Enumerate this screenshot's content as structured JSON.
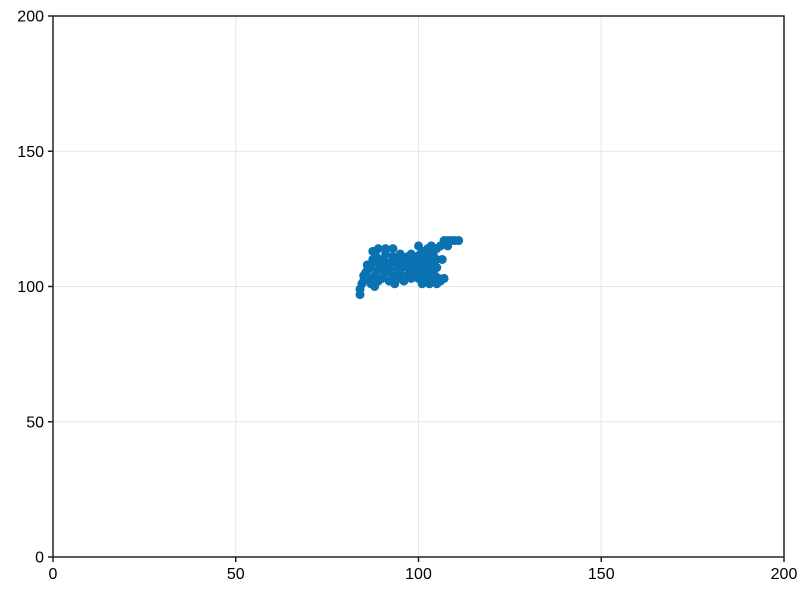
{
  "chart_data": {
    "type": "scatter",
    "title": "",
    "xlabel": "",
    "ylabel": "",
    "xlim": [
      0,
      200
    ],
    "ylim": [
      0,
      200
    ],
    "xticks": [
      0,
      50,
      100,
      150,
      200
    ],
    "yticks": [
      0,
      50,
      100,
      150,
      200
    ],
    "xtick_labels": [
      "0",
      "50",
      "100",
      "150",
      "200"
    ],
    "ytick_labels": [
      "0",
      "50",
      "100",
      "150",
      "200"
    ],
    "grid": true,
    "legend": "none",
    "series": [
      {
        "color": "#0b72b2",
        "points": [
          [
            84,
            97
          ],
          [
            84,
            99
          ],
          [
            84.5,
            101
          ],
          [
            85,
            102
          ],
          [
            85,
            104
          ],
          [
            85.5,
            105
          ],
          [
            86,
            106
          ],
          [
            86,
            108
          ],
          [
            87,
            101
          ],
          [
            87,
            103
          ],
          [
            87,
            107
          ],
          [
            87.5,
            110
          ],
          [
            87.5,
            113
          ],
          [
            88,
            100
          ],
          [
            88,
            104
          ],
          [
            88,
            109
          ],
          [
            88.5,
            111
          ],
          [
            89,
            102
          ],
          [
            89,
            106
          ],
          [
            89,
            114
          ],
          [
            89.5,
            108
          ],
          [
            90,
            103
          ],
          [
            90,
            107
          ],
          [
            90.5,
            110
          ],
          [
            91,
            105
          ],
          [
            91,
            112
          ],
          [
            91,
            114
          ],
          [
            91.5,
            108
          ],
          [
            92,
            102
          ],
          [
            92,
            106
          ],
          [
            92.5,
            109
          ],
          [
            93,
            104
          ],
          [
            93,
            111
          ],
          [
            93,
            114
          ],
          [
            93.5,
            101
          ],
          [
            94,
            107
          ],
          [
            94,
            110
          ],
          [
            94.5,
            103
          ],
          [
            95,
            105
          ],
          [
            95,
            109
          ],
          [
            95,
            112
          ],
          [
            95.5,
            107
          ],
          [
            96,
            102
          ],
          [
            96,
            110
          ],
          [
            97,
            104
          ],
          [
            97,
            108
          ],
          [
            97,
            111
          ],
          [
            97.5,
            106
          ],
          [
            98,
            103
          ],
          [
            98,
            109
          ],
          [
            98,
            112
          ],
          [
            98.5,
            110
          ],
          [
            99,
            105
          ],
          [
            99,
            108
          ],
          [
            99.5,
            111
          ],
          [
            100,
            103
          ],
          [
            100,
            106
          ],
          [
            100,
            109
          ],
          [
            100,
            115
          ],
          [
            100.5,
            112
          ],
          [
            101,
            101
          ],
          [
            101,
            104
          ],
          [
            101,
            108
          ],
          [
            101.5,
            113
          ],
          [
            102,
            102
          ],
          [
            102,
            106
          ],
          [
            102,
            110
          ],
          [
            102.5,
            114
          ],
          [
            103,
            101
          ],
          [
            103,
            104
          ],
          [
            103,
            108
          ],
          [
            103,
            111
          ],
          [
            103.5,
            115
          ],
          [
            104,
            102
          ],
          [
            104,
            106
          ],
          [
            104,
            109
          ],
          [
            104,
            112
          ],
          [
            104.5,
            104
          ],
          [
            105,
            101
          ],
          [
            105,
            107
          ],
          [
            105,
            110
          ],
          [
            105,
            114
          ],
          [
            105.5,
            103
          ],
          [
            106,
            102
          ],
          [
            106,
            115
          ],
          [
            106.5,
            110
          ],
          [
            107,
            103
          ],
          [
            107,
            116
          ],
          [
            107,
            117
          ],
          [
            108,
            115
          ],
          [
            108,
            117
          ],
          [
            109,
            117
          ],
          [
            110,
            117
          ],
          [
            111,
            117
          ]
        ]
      }
    ]
  }
}
